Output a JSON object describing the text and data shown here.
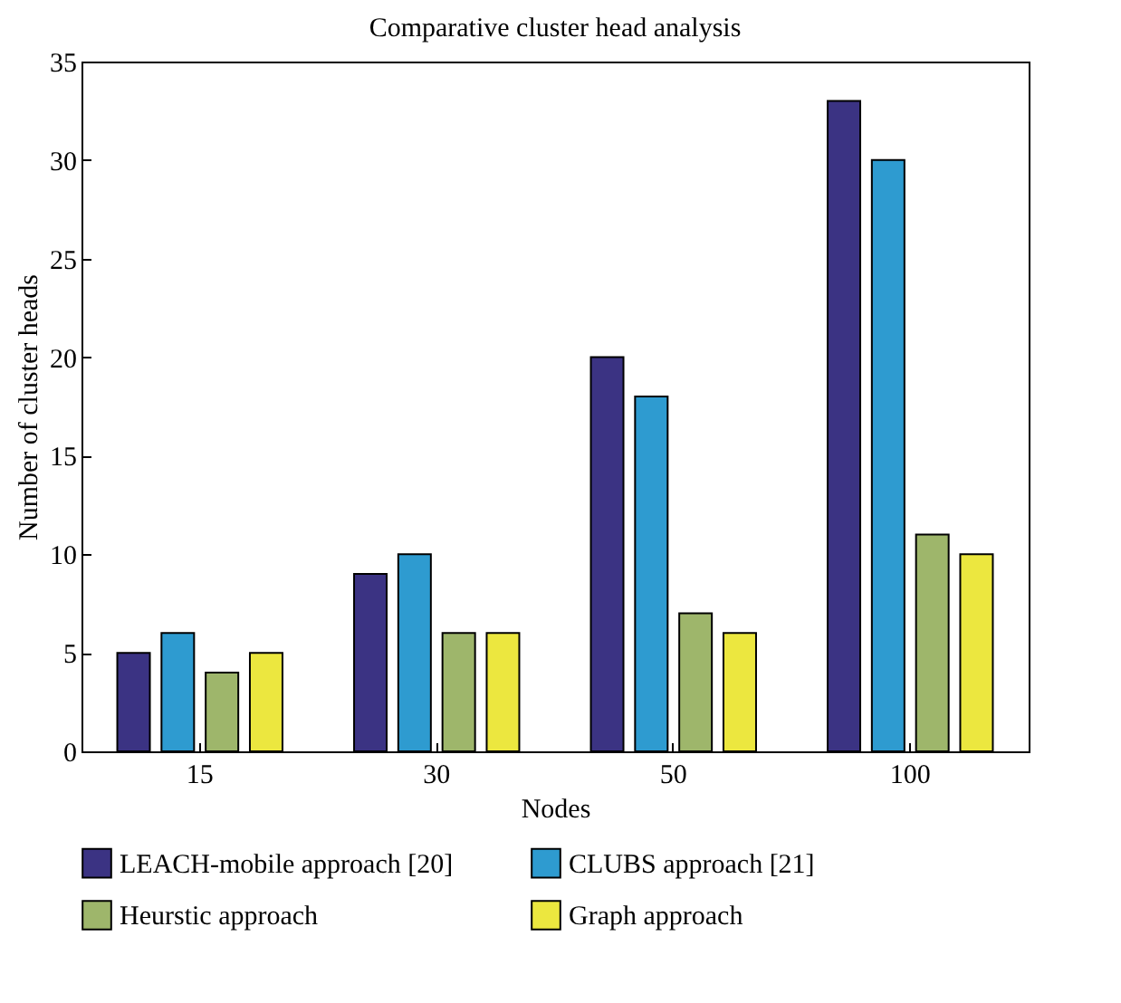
{
  "chart_data": {
    "type": "bar",
    "title": "Comparative cluster head analysis",
    "xlabel": "Nodes",
    "ylabel": "Number of cluster heads",
    "categories": [
      "15",
      "30",
      "50",
      "100"
    ],
    "series": [
      {
        "name": "LEACH-mobile approach [20]",
        "color": "#3b3383",
        "values": [
          5,
          9,
          20,
          33
        ]
      },
      {
        "name": "CLUBS approach [21]",
        "color": "#2e9bd0",
        "values": [
          6,
          10,
          18,
          30
        ]
      },
      {
        "name": "Heurstic approach",
        "color": "#9eb66b",
        "values": [
          4,
          6,
          7,
          11
        ]
      },
      {
        "name": "Graph approach",
        "color": "#ece73f",
        "values": [
          5,
          6,
          6,
          10
        ]
      }
    ],
    "ylim": [
      0,
      35
    ],
    "yticks": [
      0,
      5,
      10,
      15,
      20,
      25,
      30,
      35
    ],
    "grid": false,
    "legend": "bottom"
  }
}
